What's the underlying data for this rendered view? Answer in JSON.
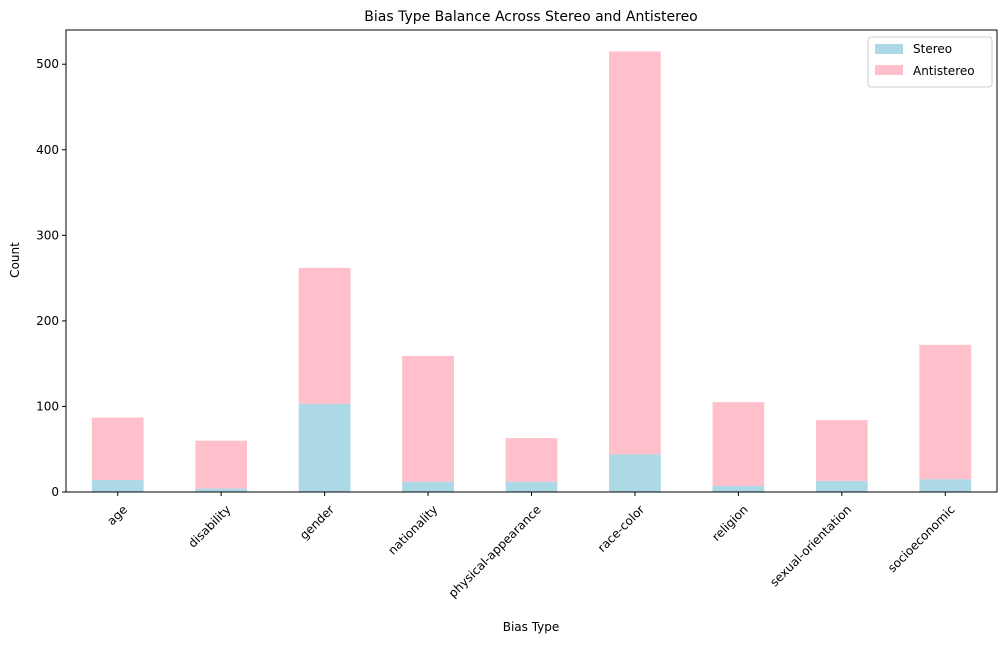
{
  "chart_data": {
    "type": "bar",
    "stacked": true,
    "title": "Bias Type Balance Across Stereo and Antistereo",
    "xlabel": "Bias Type",
    "ylabel": "Count",
    "categories": [
      "age",
      "disability",
      "gender",
      "nationality",
      "physical-appearance",
      "race-color",
      "religion",
      "sexual-orientation",
      "socioeconomic"
    ],
    "series": [
      {
        "name": "Stereo",
        "color": "#add8e6",
        "values": [
          14,
          4,
          103,
          12,
          12,
          44,
          7,
          13,
          15
        ]
      },
      {
        "name": "Antistereo",
        "color": "#ffc0cb",
        "values": [
          73,
          56,
          159,
          147,
          51,
          471,
          98,
          71,
          157
        ]
      }
    ],
    "ylim": [
      0,
      540
    ],
    "yticks": [
      0,
      100,
      200,
      300,
      400,
      500
    ],
    "grid": false,
    "legend_position": "top-right"
  }
}
